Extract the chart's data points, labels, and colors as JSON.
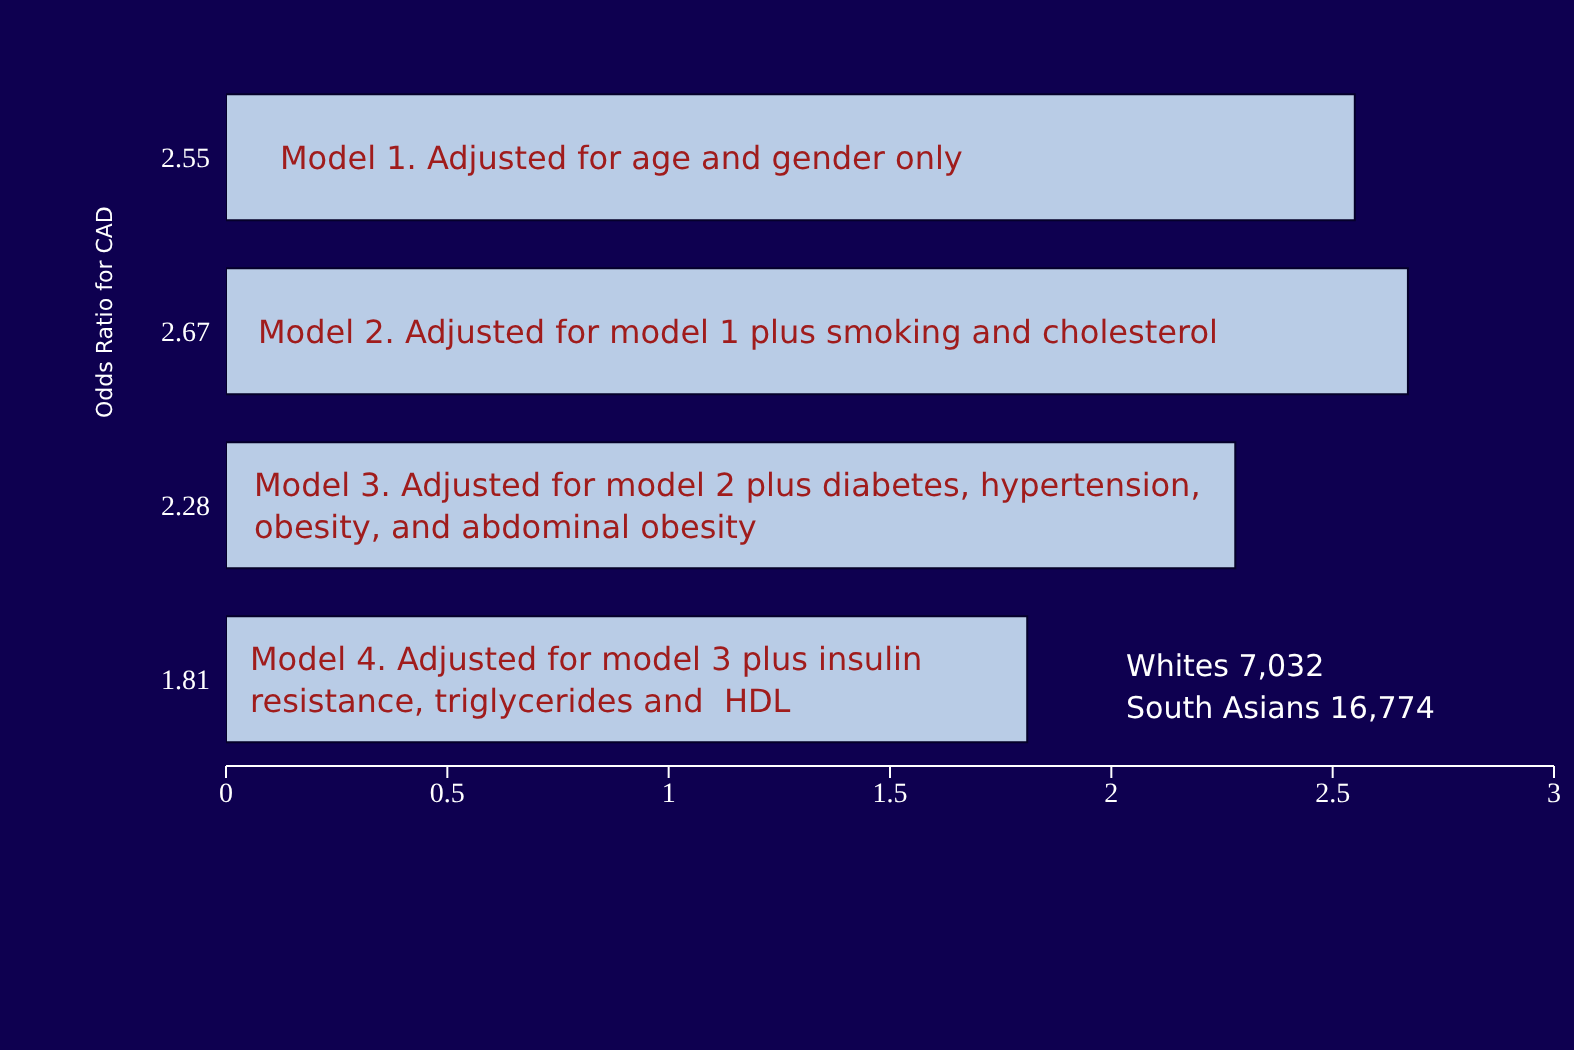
{
  "chart_data": {
    "type": "bar",
    "orientation": "horizontal",
    "ylabel": "Odds Ratio for CAD",
    "categories": [
      "Model 1. Adjusted for age and gender only",
      "Model 2. Adjusted for model 1 plus smoking and cholesterol",
      "Model 3. Adjusted for model 2 plus diabetes, hypertension, obesity, and abdominal obesity",
      "Model 4. Adjusted for model 3 plus insulin resistance, triglycerides and  HDL"
    ],
    "values": [
      2.55,
      2.67,
      2.28,
      1.81
    ],
    "color": "#b9cce6",
    "data_labels": true,
    "xlim": [
      0,
      3
    ],
    "xticks": [
      0,
      0.5,
      1,
      1.5,
      2,
      2.5,
      3
    ],
    "annotations": [
      "Whites 7,032\nSouth Asians 16,774"
    ]
  }
}
